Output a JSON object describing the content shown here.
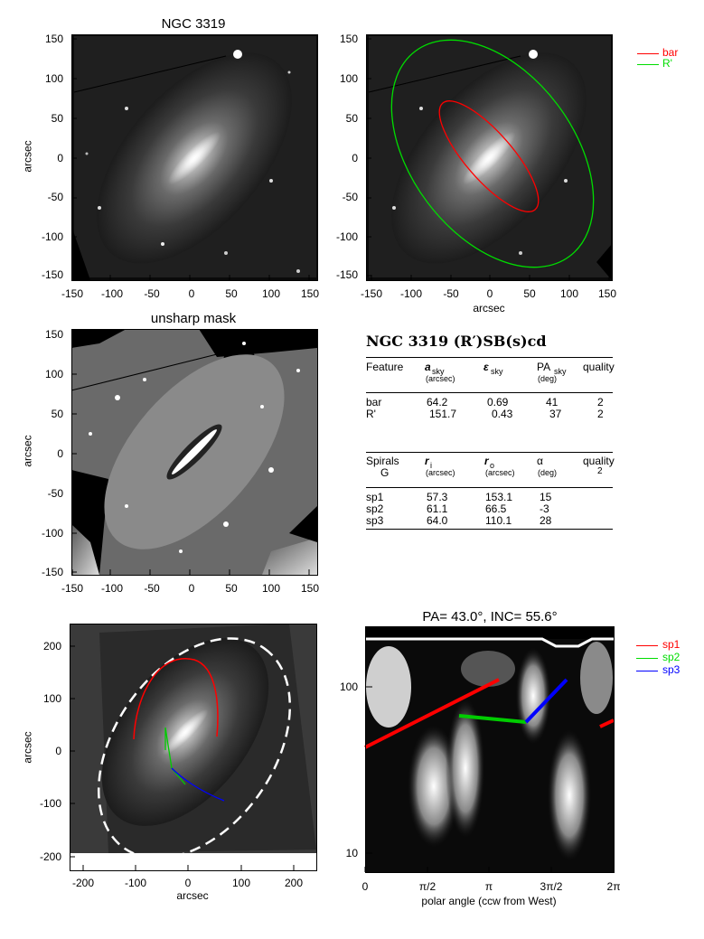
{
  "panels": {
    "p1": {
      "title": "NGC 3319",
      "ylabel": "arcsec",
      "xticks": [
        "-150",
        "-100",
        "-50",
        "0",
        "50",
        "100",
        "150"
      ],
      "yticks": [
        "150",
        "100",
        "50",
        "0",
        "-50",
        "-100",
        "-150"
      ]
    },
    "p2": {
      "xlabel": "arcsec",
      "xticks": [
        "-150",
        "-100",
        "-50",
        "0",
        "50",
        "100",
        "150"
      ],
      "yticks": [
        "150",
        "100",
        "50",
        "0",
        "-50",
        "-100",
        "-150"
      ]
    },
    "p3": {
      "title": "unsharp mask",
      "ylabel": "arcsec",
      "xticks": [
        "-150",
        "-100",
        "-50",
        "0",
        "50",
        "100",
        "150"
      ],
      "yticks": [
        "150",
        "100",
        "50",
        "0",
        "-50",
        "-100",
        "-150"
      ]
    },
    "p5": {
      "xlabel": "arcsec",
      "ylabel": "arcsec",
      "xticks": [
        "-200",
        "-100",
        "0",
        "100",
        "200"
      ],
      "yticks": [
        "200",
        "100",
        "0",
        "-100",
        "-200"
      ]
    },
    "p6": {
      "title": "PA= 43.0°, INC= 55.6°",
      "xlabel": "polar angle (ccw from West)",
      "xticks": [
        "0",
        "π/2",
        "π",
        "3π/2",
        "2π"
      ],
      "yticks": [
        "100",
        "10"
      ]
    }
  },
  "legend_top": {
    "items": [
      {
        "label": "bar",
        "color": "#ff0000"
      },
      {
        "label": "R'",
        "color": "#00dd00"
      }
    ]
  },
  "legend_bottom": {
    "items": [
      {
        "label": "sp1",
        "color": "#ff0000"
      },
      {
        "label": "sp2",
        "color": "#00dd00"
      },
      {
        "label": "sp3",
        "color": "#0000ff"
      }
    ]
  },
  "table": {
    "title": "NGC 3319  (R′)SB(s)cd",
    "features_header": {
      "c1": "Feature",
      "c2": "a",
      "c2s": "sky",
      "c2u": "(arcsec)",
      "c3": "ε",
      "c3s": "sky",
      "c4": "PA",
      "c4s": "sky",
      "c4u": "(deg)",
      "c5": "quality"
    },
    "features": [
      {
        "name": "bar",
        "a": "64.2",
        "e": "0.69",
        "pa": "41",
        "q": "2"
      },
      {
        "name": "R'",
        "a": "151.7",
        "e": "0.43",
        "pa": "37",
        "q": "2"
      }
    ],
    "spirals_header": {
      "c1": "Spirals",
      "c1b": "G",
      "c2": "r",
      "c2s": "i",
      "c2u": "(arcsec)",
      "c3": "r",
      "c3s": "o",
      "c3u": "(arcsec)",
      "c4": "α",
      "c4u": "(deg)",
      "c5": "quality",
      "c5b": "2"
    },
    "spirals": [
      {
        "name": "sp1",
        "ri": "57.3",
        "ro": "153.1",
        "alpha": "15"
      },
      {
        "name": "sp2",
        "ri": "61.1",
        "ro": "66.5",
        "alpha": "-3"
      },
      {
        "name": "sp3",
        "ri": "64.0",
        "ro": "110.1",
        "alpha": "28"
      }
    ]
  }
}
